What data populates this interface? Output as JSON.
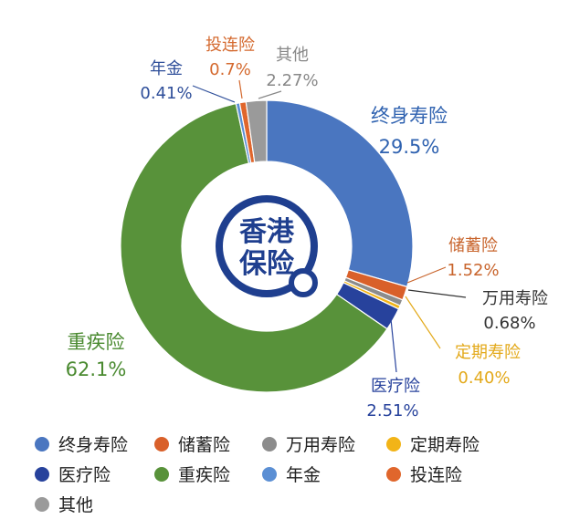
{
  "chart_data": {
    "type": "pie",
    "variant": "donut",
    "center_logo_text": [
      "香港",
      "保险"
    ],
    "slices": [
      {
        "name": "终身寿险",
        "value": 29.5,
        "label": "29.5%",
        "color": "#4a76c0",
        "label_color": "#2f62b0"
      },
      {
        "name": "储蓄险",
        "value": 1.52,
        "label": "1.52%",
        "color": "#d9602a",
        "label_color": "#c8642c"
      },
      {
        "name": "万用寿险",
        "value": 0.68,
        "label": "0.68%",
        "color": "#8c8c8c",
        "label_color": "#333333"
      },
      {
        "name": "定期寿险",
        "value": 0.4,
        "label": "0.40%",
        "color": "#f2b417",
        "label_color": "#e3a91a"
      },
      {
        "name": "医疗险",
        "value": 2.51,
        "label": "2.51%",
        "color": "#27429c",
        "label_color": "#27429c"
      },
      {
        "name": "重疾险",
        "value": 62.1,
        "label": "62.1%",
        "color": "#58923a",
        "label_color": "#4a8a30"
      },
      {
        "name": "年金",
        "value": 0.41,
        "label": "0.41%",
        "color": "#5b8fd4",
        "label_color": "#2f4f9a"
      },
      {
        "name": "投连险",
        "value": 0.7,
        "label": "0.7%",
        "color": "#e0662c",
        "label_color": "#d4692e"
      },
      {
        "name": "其他",
        "value": 2.27,
        "label": "2.27%",
        "color": "#9a9a9a",
        "label_color": "#888888"
      }
    ],
    "legend": {
      "placement": "bottom",
      "rows": [
        [
          "终身寿险",
          "储蓄险",
          "万用寿险",
          "定期寿险"
        ],
        [
          "医疗险",
          "重疾险",
          "年金",
          "投连险"
        ],
        [
          "其他"
        ]
      ]
    }
  }
}
